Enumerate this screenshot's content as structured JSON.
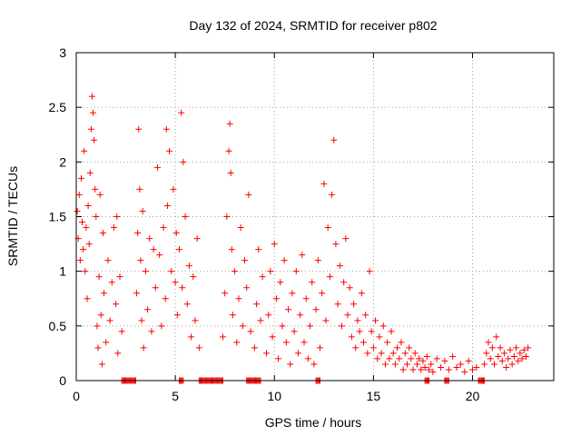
{
  "chart_data": {
    "type": "scatter",
    "title": "Day 132 of 2024, SRMTID for receiver p802",
    "xlabel": "GPS time / hours",
    "ylabel": "SRMTID / TECUs",
    "xlim": [
      0,
      24.1
    ],
    "ylim": [
      0,
      3
    ],
    "xticks": [
      0,
      5,
      10,
      15,
      20
    ],
    "xtick_labels": [
      "0",
      "5",
      "10",
      "15",
      "20"
    ],
    "yticks": [
      0,
      0.5,
      1,
      1.5,
      2,
      2.5,
      3
    ],
    "ytick_labels": [
      "0",
      "0.5",
      "1",
      "1.5",
      "2",
      "2.5",
      "3"
    ],
    "grid": true,
    "marker": "+",
    "marker_color": "#ff0000",
    "series": [
      {
        "name": "SRMTID",
        "points": [
          [
            0.05,
            1.55
          ],
          [
            0.1,
            1.3
          ],
          [
            0.15,
            1.7
          ],
          [
            0.2,
            1.1
          ],
          [
            0.25,
            1.85
          ],
          [
            0.3,
            1.45
          ],
          [
            0.35,
            1.2
          ],
          [
            0.4,
            2.1
          ],
          [
            0.45,
            1.0
          ],
          [
            0.5,
            1.4
          ],
          [
            0.55,
            0.75
          ],
          [
            0.6,
            1.6
          ],
          [
            0.65,
            1.25
          ],
          [
            0.7,
            1.9
          ],
          [
            0.75,
            2.3
          ],
          [
            0.8,
            2.6
          ],
          [
            0.85,
            2.45
          ],
          [
            0.9,
            2.2
          ],
          [
            0.95,
            1.75
          ],
          [
            1.0,
            1.5
          ],
          [
            1.05,
            0.5
          ],
          [
            1.1,
            0.3
          ],
          [
            1.15,
            0.95
          ],
          [
            1.2,
            1.7
          ],
          [
            1.25,
            0.6
          ],
          [
            1.3,
            0.15
          ],
          [
            1.35,
            1.35
          ],
          [
            1.4,
            0.8
          ],
          [
            1.5,
            0.35
          ],
          [
            1.6,
            1.1
          ],
          [
            1.7,
            0.55
          ],
          [
            1.8,
            0.9
          ],
          [
            1.9,
            1.4
          ],
          [
            2.0,
            0.7
          ],
          [
            2.05,
            1.5
          ],
          [
            2.1,
            0.25
          ],
          [
            2.2,
            0.95
          ],
          [
            2.3,
            0.45
          ],
          [
            3.05,
            0.8
          ],
          [
            3.1,
            1.35
          ],
          [
            3.15,
            2.3
          ],
          [
            3.2,
            1.75
          ],
          [
            3.25,
            1.1
          ],
          [
            3.3,
            0.55
          ],
          [
            3.35,
            1.55
          ],
          [
            3.4,
            0.3
          ],
          [
            3.5,
            1.0
          ],
          [
            3.6,
            0.65
          ],
          [
            3.7,
            1.3
          ],
          [
            3.8,
            0.45
          ],
          [
            3.9,
            1.2
          ],
          [
            4.0,
            0.85
          ],
          [
            4.1,
            1.95
          ],
          [
            4.2,
            1.15
          ],
          [
            4.3,
            0.5
          ],
          [
            4.4,
            1.4
          ],
          [
            4.5,
            0.75
          ],
          [
            4.55,
            2.3
          ],
          [
            4.6,
            1.6
          ],
          [
            4.7,
            2.1
          ],
          [
            4.8,
            1.0
          ],
          [
            4.9,
            1.75
          ],
          [
            5.0,
            0.9
          ],
          [
            5.05,
            1.35
          ],
          [
            5.1,
            0.6
          ],
          [
            5.2,
            1.2
          ],
          [
            5.3,
            2.45
          ],
          [
            5.35,
            0.85
          ],
          [
            5.4,
            2.0
          ],
          [
            5.5,
            1.5
          ],
          [
            5.6,
            0.7
          ],
          [
            5.7,
            1.05
          ],
          [
            5.8,
            0.4
          ],
          [
            5.9,
            0.95
          ],
          [
            6.0,
            0.55
          ],
          [
            6.1,
            1.3
          ],
          [
            6.2,
            0.3
          ],
          [
            7.4,
            0.4
          ],
          [
            7.5,
            0.8
          ],
          [
            7.6,
            1.5
          ],
          [
            7.7,
            2.1
          ],
          [
            7.75,
            2.35
          ],
          [
            7.8,
            1.9
          ],
          [
            7.85,
            1.2
          ],
          [
            7.9,
            0.6
          ],
          [
            8.0,
            1.0
          ],
          [
            8.1,
            0.35
          ],
          [
            8.2,
            0.75
          ],
          [
            8.3,
            1.4
          ],
          [
            8.4,
            0.5
          ],
          [
            8.5,
            1.1
          ],
          [
            8.6,
            0.85
          ],
          [
            8.7,
            1.7
          ],
          [
            8.8,
            0.45
          ],
          [
            9.0,
            0.3
          ],
          [
            9.1,
            0.7
          ],
          [
            9.2,
            1.2
          ],
          [
            9.3,
            0.55
          ],
          [
            9.4,
            0.95
          ],
          [
            9.6,
            0.25
          ],
          [
            9.7,
            0.6
          ],
          [
            9.8,
            1.0
          ],
          [
            9.9,
            0.4
          ],
          [
            10.0,
            1.25
          ],
          [
            10.1,
            0.75
          ],
          [
            10.2,
            0.2
          ],
          [
            10.3,
            0.9
          ],
          [
            10.4,
            0.5
          ],
          [
            10.5,
            1.1
          ],
          [
            10.6,
            0.35
          ],
          [
            10.7,
            0.65
          ],
          [
            10.8,
            0.15
          ],
          [
            10.9,
            0.8
          ],
          [
            11.0,
            0.45
          ],
          [
            11.1,
            1.0
          ],
          [
            11.2,
            0.25
          ],
          [
            11.3,
            0.6
          ],
          [
            11.4,
            1.15
          ],
          [
            11.5,
            0.35
          ],
          [
            11.6,
            0.75
          ],
          [
            11.7,
            0.2
          ],
          [
            11.8,
            0.5
          ],
          [
            11.9,
            0.9
          ],
          [
            12.0,
            0.15
          ],
          [
            12.1,
            0.65
          ],
          [
            12.2,
            1.1
          ],
          [
            12.3,
            0.3
          ],
          [
            12.4,
            0.8
          ],
          [
            12.5,
            1.8
          ],
          [
            12.6,
            0.55
          ],
          [
            12.7,
            1.4
          ],
          [
            12.8,
            0.95
          ],
          [
            12.9,
            1.7
          ],
          [
            13.0,
            2.2
          ],
          [
            13.1,
            1.25
          ],
          [
            13.2,
            0.7
          ],
          [
            13.3,
            1.05
          ],
          [
            13.4,
            0.5
          ],
          [
            13.5,
            0.9
          ],
          [
            13.6,
            1.3
          ],
          [
            13.7,
            0.6
          ],
          [
            13.8,
            0.85
          ],
          [
            13.9,
            0.4
          ],
          [
            14.0,
            0.7
          ],
          [
            14.1,
            0.3
          ],
          [
            14.2,
            0.55
          ],
          [
            14.3,
            0.45
          ],
          [
            14.4,
            0.8
          ],
          [
            14.5,
            0.35
          ],
          [
            14.6,
            0.6
          ],
          [
            14.7,
            0.25
          ],
          [
            14.8,
            1.0
          ],
          [
            14.9,
            0.45
          ],
          [
            15.0,
            0.3
          ],
          [
            15.1,
            0.55
          ],
          [
            15.2,
            0.2
          ],
          [
            15.3,
            0.4
          ],
          [
            15.4,
            0.25
          ],
          [
            15.5,
            0.5
          ],
          [
            15.6,
            0.15
          ],
          [
            15.7,
            0.35
          ],
          [
            15.8,
            0.2
          ],
          [
            15.9,
            0.45
          ],
          [
            16.0,
            0.25
          ],
          [
            16.1,
            0.15
          ],
          [
            16.2,
            0.3
          ],
          [
            16.3,
            0.2
          ],
          [
            16.4,
            0.35
          ],
          [
            16.5,
            0.1
          ],
          [
            16.6,
            0.25
          ],
          [
            16.7,
            0.15
          ],
          [
            16.8,
            0.3
          ],
          [
            16.9,
            0.2
          ],
          [
            17.0,
            0.1
          ],
          [
            17.1,
            0.25
          ],
          [
            17.2,
            0.15
          ],
          [
            17.3,
            0.2
          ],
          [
            17.4,
            0.1
          ],
          [
            17.5,
            0.18
          ],
          [
            17.6,
            0.12
          ],
          [
            17.7,
            0.22
          ],
          [
            17.8,
            0.1
          ],
          [
            17.9,
            0.15
          ],
          [
            18.0,
            0.08
          ],
          [
            18.2,
            0.2
          ],
          [
            18.4,
            0.12
          ],
          [
            18.6,
            0.18
          ],
          [
            18.8,
            0.1
          ],
          [
            19.0,
            0.22
          ],
          [
            19.2,
            0.12
          ],
          [
            19.4,
            0.15
          ],
          [
            19.6,
            0.08
          ],
          [
            19.8,
            0.18
          ],
          [
            20.0,
            0.1
          ],
          [
            20.2,
            0.12
          ],
          [
            20.6,
            0.15
          ],
          [
            20.7,
            0.25
          ],
          [
            20.8,
            0.35
          ],
          [
            20.9,
            0.2
          ],
          [
            21.0,
            0.3
          ],
          [
            21.1,
            0.15
          ],
          [
            21.2,
            0.4
          ],
          [
            21.3,
            0.22
          ],
          [
            21.4,
            0.3
          ],
          [
            21.5,
            0.18
          ],
          [
            21.6,
            0.25
          ],
          [
            21.7,
            0.12
          ],
          [
            21.8,
            0.2
          ],
          [
            21.9,
            0.28
          ],
          [
            22.0,
            0.15
          ],
          [
            22.1,
            0.22
          ],
          [
            22.2,
            0.3
          ],
          [
            22.3,
            0.18
          ],
          [
            22.4,
            0.25
          ],
          [
            22.5,
            0.2
          ],
          [
            22.6,
            0.28
          ],
          [
            22.7,
            0.22
          ],
          [
            22.8,
            0.3
          ]
        ]
      }
    ],
    "zero_segments": [
      [
        2.3,
        3.0
      ],
      [
        5.2,
        5.4
      ],
      [
        6.2,
        7.4
      ],
      [
        8.6,
        9.3
      ],
      [
        12.1,
        12.3
      ],
      [
        17.6,
        17.8
      ],
      [
        18.6,
        18.8
      ],
      [
        20.3,
        20.6
      ]
    ]
  }
}
